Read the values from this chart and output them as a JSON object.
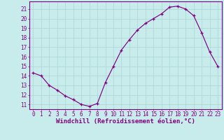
{
  "x": [
    0,
    1,
    2,
    3,
    4,
    5,
    6,
    7,
    8,
    9,
    10,
    11,
    12,
    13,
    14,
    15,
    16,
    17,
    18,
    19,
    20,
    21,
    22,
    23
  ],
  "y": [
    14.3,
    14.0,
    13.0,
    12.5,
    11.9,
    11.5,
    11.0,
    10.8,
    11.1,
    13.3,
    15.0,
    16.7,
    17.8,
    18.8,
    19.5,
    20.0,
    20.5,
    21.2,
    21.3,
    21.0,
    20.3,
    18.5,
    16.5,
    15.0
  ],
  "xlim": [
    -0.5,
    23.5
  ],
  "ylim": [
    10.5,
    21.8
  ],
  "yticks": [
    11,
    12,
    13,
    14,
    15,
    16,
    17,
    18,
    19,
    20,
    21
  ],
  "xticks": [
    0,
    1,
    2,
    3,
    4,
    5,
    6,
    7,
    8,
    9,
    10,
    11,
    12,
    13,
    14,
    15,
    16,
    17,
    18,
    19,
    20,
    21,
    22,
    23
  ],
  "xlabel": "Windchill (Refroidissement éolien,°C)",
  "line_color": "#800080",
  "marker_color": "#800080",
  "bg_color": "#c8ebeb",
  "grid_color": "#b0d8d8",
  "axis_color": "#800080",
  "tick_color": "#800080",
  "label_color": "#800080",
  "font_size_axis": 6.5,
  "font_size_tick": 5.5
}
